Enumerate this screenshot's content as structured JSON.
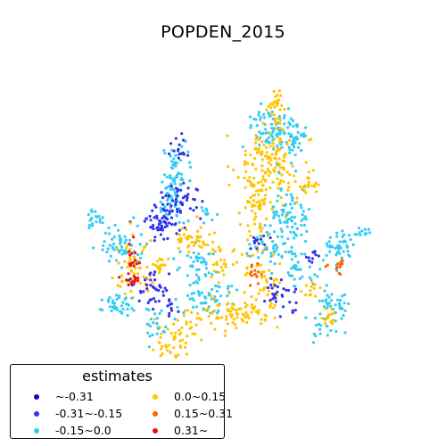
{
  "chart_data": {
    "type": "scatter",
    "title": "POPDEN_2015",
    "legend": {
      "title": "estimates",
      "placement": "bottom-left",
      "entries": [
        {
          "label": "~-0.31",
          "color": "#2200bb"
        },
        {
          "label": "-0.31~-0.15",
          "color": "#3333ee"
        },
        {
          "label": "-0.15~0.0",
          "color": "#33ccf5"
        },
        {
          "label": "0.0~0.15",
          "color": "#ffc400"
        },
        {
          "label": "0.15~0.31",
          "color": "#ff6600"
        },
        {
          "label": "0.31~",
          "color": "#ee1111"
        }
      ]
    }
  }
}
